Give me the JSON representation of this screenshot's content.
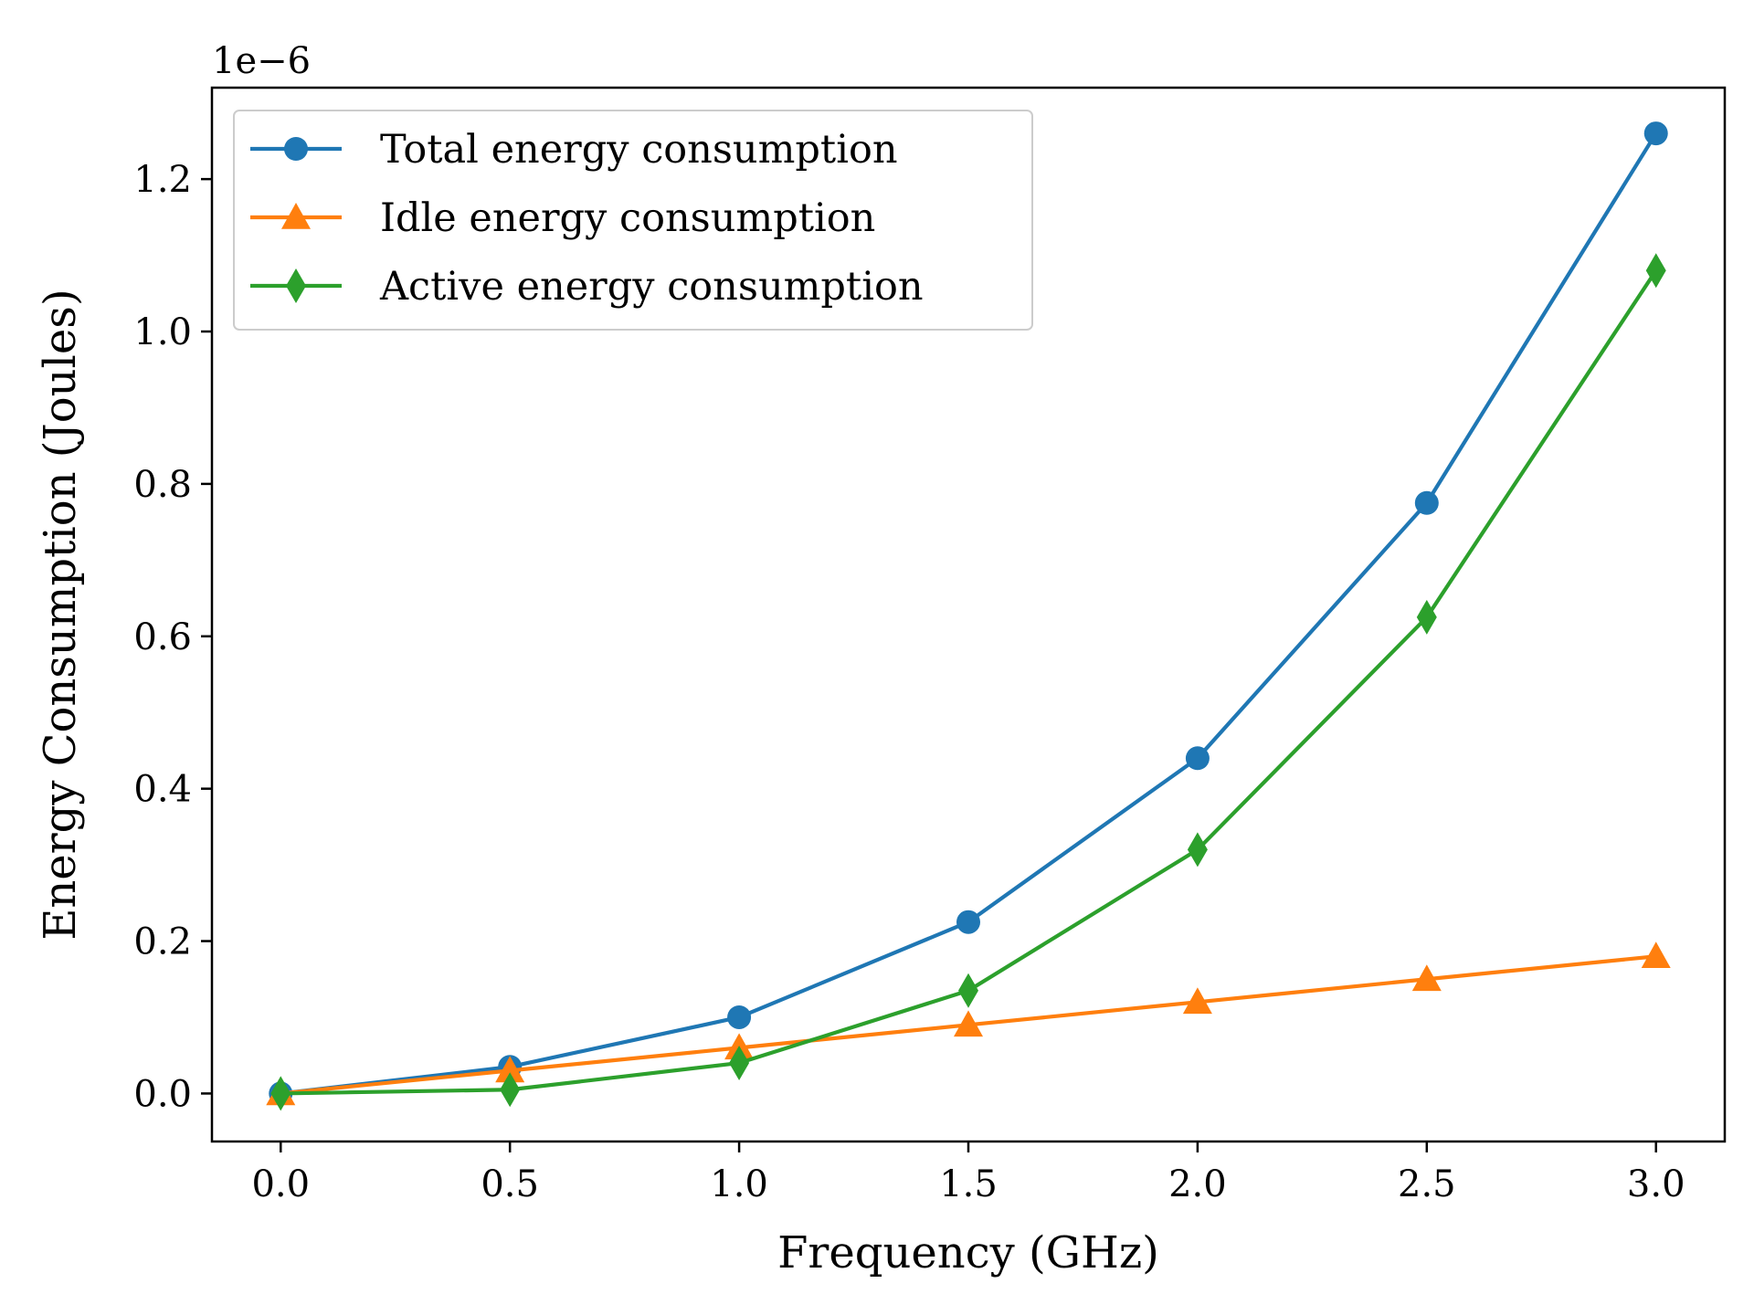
{
  "chart_data": {
    "type": "line",
    "title": "",
    "xlabel": "Frequency (GHz)",
    "ylabel": "Energy Consumption (Joules)",
    "y_offset_label": "1e−6",
    "x": [
      0.0,
      0.5,
      1.0,
      1.5,
      2.0,
      2.5,
      3.0
    ],
    "xlim": [
      -0.15,
      3.15
    ],
    "ylim": [
      -0.063,
      1.32
    ],
    "x_ticks": [
      0.0,
      0.5,
      1.0,
      1.5,
      2.0,
      2.5,
      3.0
    ],
    "x_tick_labels": [
      "0.0",
      "0.5",
      "1.0",
      "1.5",
      "2.0",
      "2.5",
      "3.0"
    ],
    "y_ticks": [
      0.0,
      0.2,
      0.4,
      0.6,
      0.8,
      1.0,
      1.2
    ],
    "y_tick_labels": [
      "0.0",
      "0.2",
      "0.4",
      "0.6",
      "0.8",
      "1.0",
      "1.2"
    ],
    "grid": false,
    "legend_position": "top-left",
    "series": [
      {
        "name": "Total energy consumption",
        "color": "#1f77b4",
        "marker": "circle",
        "values": [
          0.0,
          0.035,
          0.1,
          0.225,
          0.44,
          0.775,
          1.26
        ]
      },
      {
        "name": "Idle energy consumption",
        "color": "#ff7f0e",
        "marker": "triangle",
        "values": [
          0.0,
          0.03,
          0.06,
          0.09,
          0.12,
          0.15,
          0.18
        ]
      },
      {
        "name": "Active energy consumption",
        "color": "#2ca02c",
        "marker": "diamond",
        "values": [
          0.0,
          0.005,
          0.04,
          0.135,
          0.32,
          0.625,
          1.08
        ]
      }
    ]
  }
}
